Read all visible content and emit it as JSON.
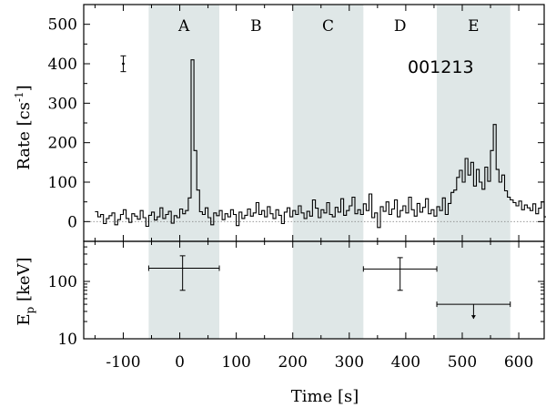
{
  "chart_data": [
    {
      "type": "line",
      "panel": "top",
      "ylabel_main": "Rate [cs",
      "ylabel_sup": "-1",
      "ylabel_end": "]",
      "ylim": [
        -50,
        550
      ],
      "xlim": [
        -170,
        645
      ],
      "yticks": [
        0,
        100,
        200,
        300,
        400,
        500
      ],
      "annotation": "001213",
      "series": [
        {
          "step": 5,
          "x_start": -150,
          "values": [
            25,
            12,
            18,
            -5,
            8,
            15,
            22,
            -8,
            5,
            18,
            30,
            8,
            -2,
            20,
            14,
            6,
            28,
            10,
            -12,
            16,
            24,
            4,
            12,
            35,
            8,
            18,
            26,
            -4,
            15,
            10,
            32,
            20,
            28,
            60,
            410,
            180,
            80,
            25,
            18,
            35,
            10,
            -8,
            22,
            15,
            28,
            5,
            20,
            12,
            30,
            18,
            -10,
            24,
            8,
            16,
            32,
            14,
            22,
            48,
            18,
            28,
            12,
            38,
            20,
            8,
            30,
            16,
            -5,
            24,
            35,
            12,
            28,
            18,
            40,
            22,
            8,
            26,
            14,
            55,
            34,
            10,
            30,
            22,
            48,
            18,
            12,
            36,
            24,
            58,
            16,
            28,
            40,
            62,
            20,
            30,
            18,
            45,
            28,
            70,
            10,
            22,
            -15,
            38,
            26,
            50,
            18,
            32,
            55,
            12,
            28,
            40,
            22,
            62,
            30,
            14,
            46,
            24,
            36,
            58,
            20,
            30,
            14,
            38,
            28,
            60,
            18,
            46,
            74,
            80,
            112,
            130,
            100,
            160,
            118,
            150,
            90,
            132,
            100,
            82,
            138,
            102,
            180,
            246,
            132,
            100,
            118,
            78,
            62,
            55,
            48,
            40,
            52,
            30,
            42,
            35,
            28,
            45,
            20,
            34,
            50,
            12,
            26,
            40,
            20,
            55,
            30,
            8,
            44,
            18,
            28,
            -14,
            32,
            22,
            10,
            36,
            0,
            26,
            14,
            -25,
            20,
            10,
            18,
            -5,
            12,
            28,
            -8,
            20,
            14,
            30,
            16,
            0,
            22
          ]
        }
      ],
      "bands": [
        {
          "label": "A",
          "x0": -55,
          "x1": 70,
          "shaded": true
        },
        {
          "label": "B",
          "x0": 70,
          "x1": 200,
          "shaded": false
        },
        {
          "label": "C",
          "x0": 200,
          "x1": 325,
          "shaded": true
        },
        {
          "label": "D",
          "x0": 325,
          "x1": 455,
          "shaded": false
        },
        {
          "label": "E",
          "x0": 455,
          "x1": 585,
          "shaded": true
        }
      ],
      "errorbar": {
        "x": -100,
        "y": 400,
        "err": 20
      }
    },
    {
      "type": "scatter",
      "panel": "bottom",
      "xlabel": "Time [s]",
      "ylabel_main": "E",
      "ylabel_sub": "p",
      "ylabel_end": " [keV]",
      "yscale": "log",
      "ylim": [
        10,
        500
      ],
      "xlim": [
        -170,
        645
      ],
      "xticks": [
        -100,
        0,
        100,
        200,
        300,
        400,
        500,
        600
      ],
      "yticks": [
        10,
        100
      ],
      "points": [
        {
          "x": 5,
          "xerr_lo": -55,
          "xerr_hi": 70,
          "y": 170,
          "y_lo": 70,
          "y_hi": 280,
          "upper_limit": false
        },
        {
          "x": 390,
          "xerr_lo": 325,
          "xerr_hi": 455,
          "y": 165,
          "y_lo": 70,
          "y_hi": 260,
          "upper_limit": false
        },
        {
          "x": 520,
          "xerr_lo": 455,
          "xerr_hi": 585,
          "y": 40,
          "upper_limit": true
        }
      ]
    }
  ]
}
